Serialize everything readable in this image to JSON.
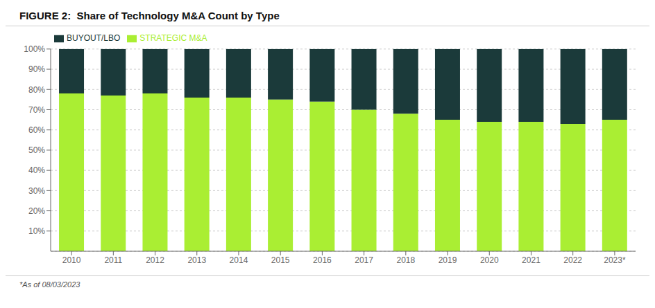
{
  "chart_data": {
    "type": "bar",
    "title": "FIGURE 2:  Share of Technology M&A Count by Type",
    "categories": [
      "2010",
      "2011",
      "2012",
      "2013",
      "2014",
      "2015",
      "2016",
      "2017",
      "2018",
      "2019",
      "2020",
      "2021",
      "2022",
      "2023*"
    ],
    "series": [
      {
        "name": "STRATEGIC M&A",
        "color": "#aaee33",
        "values": [
          78,
          77,
          78,
          76,
          76,
          75,
          74,
          70,
          68,
          65,
          64,
          64,
          63,
          65
        ]
      },
      {
        "name": "BUYOUT/LBO",
        "color": "#1b3a3a",
        "values": [
          22,
          23,
          22,
          24,
          24,
          25,
          26,
          30,
          32,
          35,
          36,
          36,
          37,
          35
        ]
      }
    ],
    "stacked": true,
    "ylim": [
      0,
      100
    ],
    "yticks": [
      {
        "value": 10,
        "label": "10%"
      },
      {
        "value": 20,
        "label": "20%"
      },
      {
        "value": 30,
        "label": "30%"
      },
      {
        "value": 40,
        "label": "40%"
      },
      {
        "value": 50,
        "label": "50%"
      },
      {
        "value": 60,
        "label": "60%"
      },
      {
        "value": 70,
        "label": "70%"
      },
      {
        "value": 80,
        "label": "80%"
      },
      {
        "value": 90,
        "label": "90%"
      },
      {
        "value": 100,
        "label": "100%"
      }
    ],
    "grid": true,
    "legend": "top",
    "annotations": [
      "*As of 08/03/2023"
    ]
  }
}
